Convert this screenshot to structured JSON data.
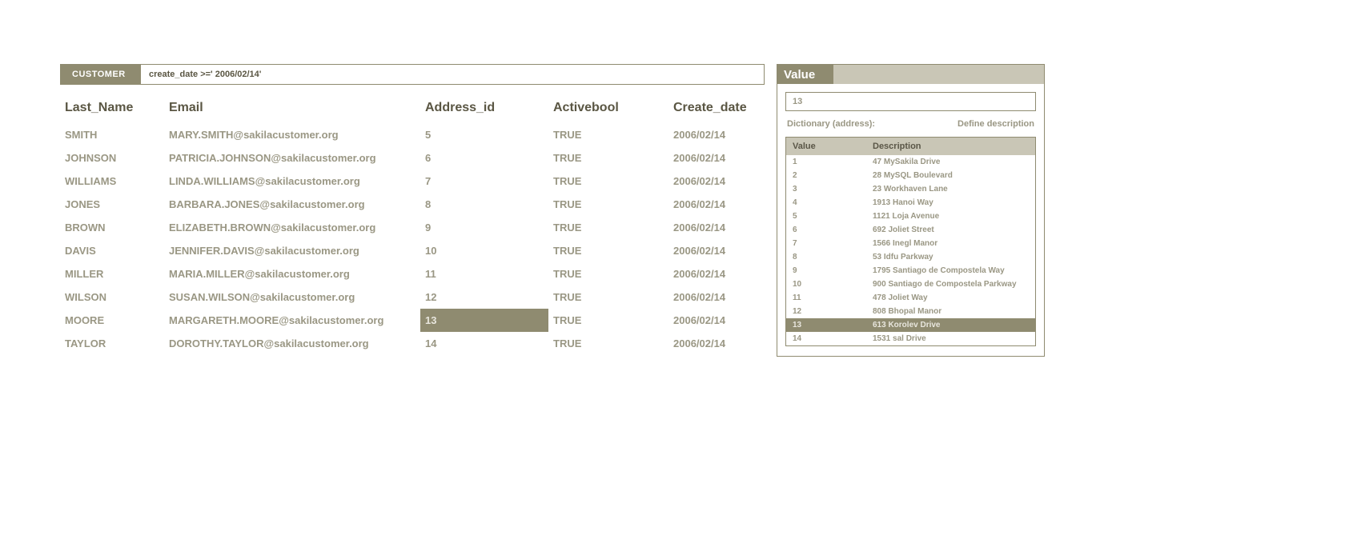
{
  "main": {
    "tab_label": "CUSTOMER",
    "query": "create_date >=' 2006/02/14'",
    "columns": [
      "Last_Name",
      "Email",
      "Address_id",
      "Activebool",
      "Create_date"
    ],
    "rows": [
      {
        "last_name": "SMITH",
        "email": "MARY.SMITH@sakilacustomer.org",
        "address_id": "5",
        "activebool": "TRUE",
        "create_date": "2006/02/14"
      },
      {
        "last_name": "JOHNSON",
        "email": "PATRICIA.JOHNSON@sakilacustomer.org",
        "address_id": "6",
        "activebool": "TRUE",
        "create_date": "2006/02/14"
      },
      {
        "last_name": "WILLIAMS",
        "email": "LINDA.WILLIAMS@sakilacustomer.org",
        "address_id": "7",
        "activebool": "TRUE",
        "create_date": "2006/02/14"
      },
      {
        "last_name": "JONES",
        "email": "BARBARA.JONES@sakilacustomer.org",
        "address_id": "8",
        "activebool": "TRUE",
        "create_date": "2006/02/14"
      },
      {
        "last_name": "BROWN",
        "email": "ELIZABETH.BROWN@sakilacustomer.org",
        "address_id": "9",
        "activebool": "TRUE",
        "create_date": "2006/02/14"
      },
      {
        "last_name": "DAVIS",
        "email": "JENNIFER.DAVIS@sakilacustomer.org",
        "address_id": "10",
        "activebool": "TRUE",
        "create_date": "2006/02/14"
      },
      {
        "last_name": "MILLER",
        "email": "MARIA.MILLER@sakilacustomer.org",
        "address_id": "11",
        "activebool": "TRUE",
        "create_date": "2006/02/14"
      },
      {
        "last_name": "WILSON",
        "email": "SUSAN.WILSON@sakilacustomer.org",
        "address_id": "12",
        "activebool": "TRUE",
        "create_date": "2006/02/14"
      },
      {
        "last_name": "MOORE",
        "email": "MARGARETH.MOORE@sakilacustomer.org",
        "address_id": "13",
        "activebool": "TRUE",
        "create_date": "2006/02/14",
        "selected_col": "address_id"
      },
      {
        "last_name": "TAYLOR",
        "email": "DOROTHY.TAYLOR@sakilacustomer.org",
        "address_id": "14",
        "activebool": "TRUE",
        "create_date": "2006/02/14"
      }
    ]
  },
  "side": {
    "tab_label": "Value",
    "value_box": "13",
    "dict_label": "Dictionary (address):",
    "define_label": "Define description",
    "dict_columns": [
      "Value",
      "Description"
    ],
    "dict_rows": [
      {
        "value": "1",
        "description": "47 MySakila Drive"
      },
      {
        "value": "2",
        "description": "28 MySQL Boulevard"
      },
      {
        "value": "3",
        "description": "23 Workhaven Lane"
      },
      {
        "value": "4",
        "description": "1913 Hanoi Way"
      },
      {
        "value": "5",
        "description": "1121 Loja Avenue"
      },
      {
        "value": "6",
        "description": "692 Joliet Street"
      },
      {
        "value": "7",
        "description": "1566 Inegl Manor"
      },
      {
        "value": "8",
        "description": "53 Idfu Parkway"
      },
      {
        "value": "9",
        "description": "1795 Santiago de Compostela Way"
      },
      {
        "value": "10",
        "description": "900 Santiago de Compostela Parkway"
      },
      {
        "value": "11",
        "description": "478 Joliet Way"
      },
      {
        "value": "12",
        "description": "808 Bhopal Manor"
      },
      {
        "value": "13",
        "description": "613 Korolev Drive",
        "selected": true
      },
      {
        "value": "14",
        "description": "1531 sal Drive"
      }
    ]
  },
  "colors": {
    "accent": "#8f8b70",
    "accent_light": "#c9c6b6",
    "text_muted": "#9a9784",
    "text_strong": "#5a5643"
  }
}
